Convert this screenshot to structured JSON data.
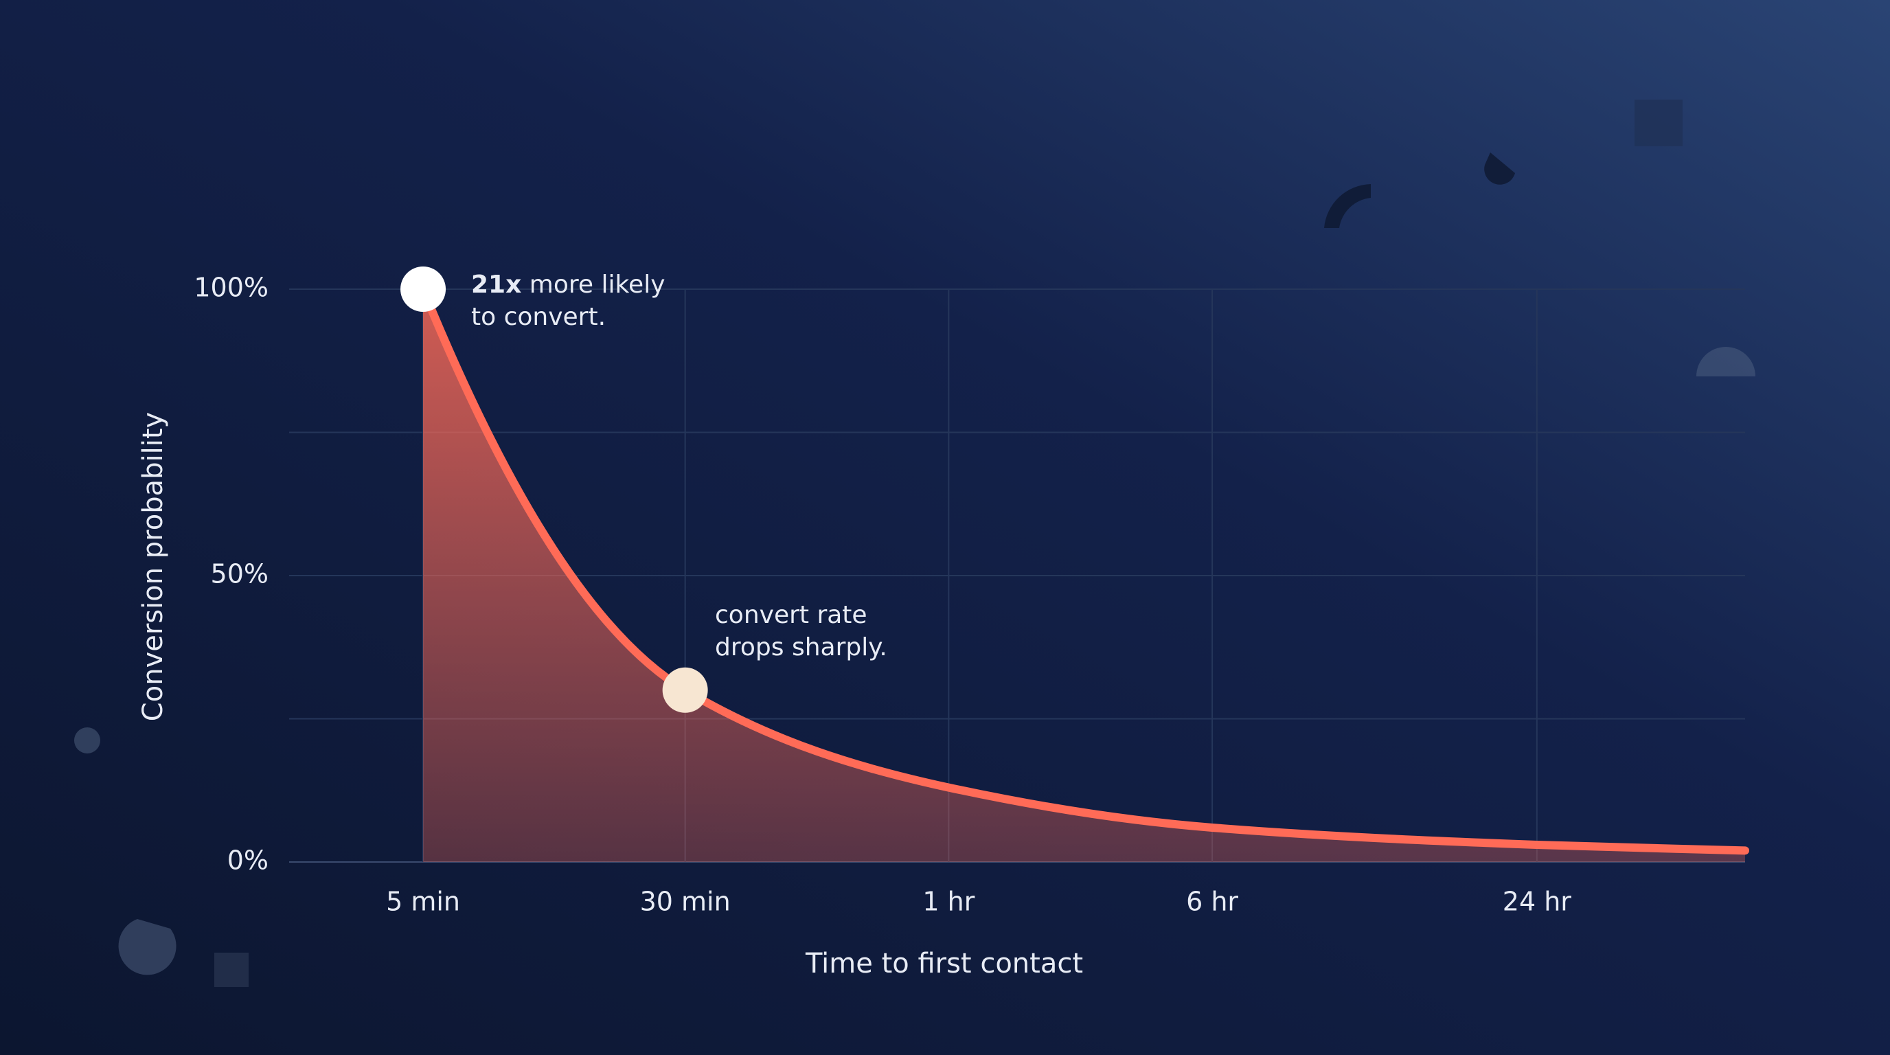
{
  "chart_data": {
    "type": "area",
    "x_label": "Time to first contact",
    "y_label": "Conversion probability",
    "categories": [
      "5 min",
      "30 min",
      "1 hr",
      "6 hr",
      "24 hr",
      null
    ],
    "values": [
      100,
      30,
      13,
      6,
      3,
      2
    ],
    "color": "#ff6b57",
    "ylim": [
      0,
      100
    ],
    "yticks": [
      {
        "value": 0,
        "label": "0%"
      },
      {
        "value": 25,
        "label": null
      },
      {
        "value": 50,
        "label": "50%"
      },
      {
        "value": 75,
        "label": null
      },
      {
        "value": 100,
        "label": "100%"
      }
    ],
    "grid": true,
    "highlights": [
      {
        "index": 0,
        "color": "#ffffff"
      },
      {
        "index": 1,
        "color": "#f7e6d2"
      }
    ],
    "annotations": [
      {
        "emphasis": "21x",
        "lines": [
          "more likely",
          "to convert."
        ]
      },
      {
        "lines": [
          "convert rate",
          "drops sharply."
        ]
      }
    ]
  }
}
